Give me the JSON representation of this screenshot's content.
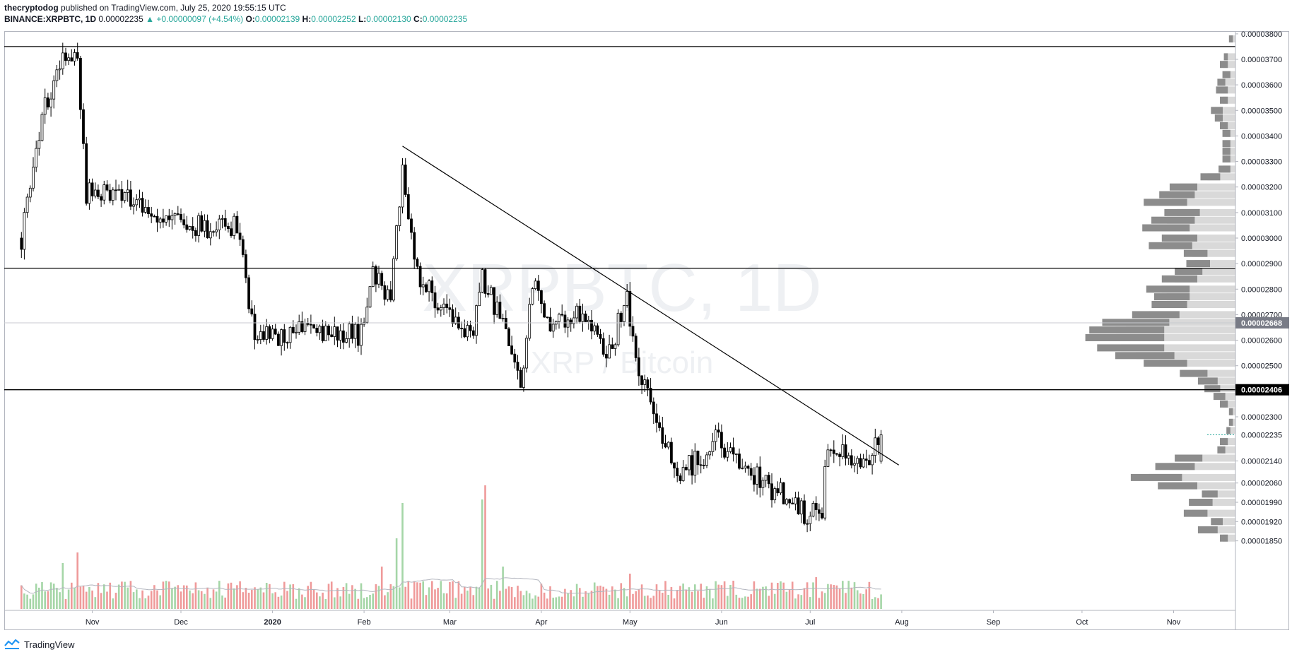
{
  "header": {
    "author": "thecryptodog",
    "published": "published on TradingView.com, July 25, 2020 19:55:15 UTC",
    "symbol": "BINANCE:XRPBTC, 1D",
    "price": "0.00002235",
    "change": "+0.00000097 (+4.54%)",
    "o_label": "O:",
    "o": "0.00002139",
    "h_label": "H:",
    "h": "0.00002252",
    "l_label": "L:",
    "l": "0.00002130",
    "c_label": "C:",
    "c": "0.00002235"
  },
  "watermark": {
    "symbol": "XRPBTC, 1D",
    "name": "XRP / Bitcoin"
  },
  "footer": {
    "brand": "TradingView"
  },
  "colors": {
    "up": "#26a69a",
    "down": "#000000",
    "vol_up": "#a5d6a7",
    "vol_down": "#ef9a9a",
    "vp_dark": "#8c8c8c",
    "vp_light": "#d9d9d9",
    "badge_grey": "#787b86",
    "badge_black": "#000000"
  },
  "chart_data": {
    "type": "candlestick",
    "title": "BINANCE:XRPBTC, 1D",
    "x_ticks": [
      "Nov",
      "Dec",
      "2020",
      "Feb",
      "Mar",
      "Apr",
      "May",
      "Jun",
      "Jul",
      "Aug",
      "Sep",
      "Oct",
      "Nov"
    ],
    "y_ticks": [
      "0.00003800",
      "0.00003700",
      "0.00003600",
      "0.00003500",
      "0.00003400",
      "0.00003300",
      "0.00003200",
      "0.00003100",
      "0.00003000",
      "0.00002900",
      "0.00002800",
      "0.00002700",
      "0.00002600",
      "0.00002500",
      "0.00002300",
      "0.00002140",
      "0.00002060",
      "0.00001990",
      "0.00001920",
      "0.00001850"
    ],
    "price_badges": [
      {
        "value": "0.00002668",
        "style": "grey"
      },
      {
        "value": "0.00002406",
        "style": "black"
      },
      {
        "value": "0.00002235",
        "style": "last"
      }
    ],
    "horizontal_levels": [
      3.75e-05,
      2.882e-05,
      2.406e-05
    ],
    "trendline": {
      "from": [
        "2020-02-14",
        3.36e-05
      ],
      "to": [
        "2020-07-31",
        2.125e-05
      ]
    },
    "price_path": [
      [
        "2019-10-08",
        3e-05
      ],
      [
        "2019-10-15",
        3.47e-05
      ],
      [
        "2019-10-22",
        3.72e-05
      ],
      [
        "2019-10-27",
        3.71e-05
      ],
      [
        "2019-10-30",
        3.18e-05
      ],
      [
        "2019-11-10",
        3.18e-05
      ],
      [
        "2019-11-20",
        3.11e-05
      ],
      [
        "2019-12-01",
        3.09e-05
      ],
      [
        "2019-12-10",
        3.02e-05
      ],
      [
        "2019-12-20",
        3.05e-05
      ],
      [
        "2019-12-26",
        2.62e-05
      ],
      [
        "2020-01-05",
        2.62e-05
      ],
      [
        "2020-01-12",
        2.67e-05
      ],
      [
        "2020-01-20",
        2.63e-05
      ],
      [
        "2020-01-31",
        2.62e-05
      ],
      [
        "2020-02-04",
        2.85e-05
      ],
      [
        "2020-02-10",
        2.77e-05
      ],
      [
        "2020-02-14",
        3.26e-05
      ],
      [
        "2020-02-18",
        2.89e-05
      ],
      [
        "2020-02-25",
        2.75e-05
      ],
      [
        "2020-03-05",
        2.65e-05
      ],
      [
        "2020-03-09",
        2.62e-05
      ],
      [
        "2020-03-12",
        2.85e-05
      ],
      [
        "2020-03-20",
        2.62e-05
      ],
      [
        "2020-03-25",
        2.41e-05
      ],
      [
        "2020-03-29",
        2.82e-05
      ],
      [
        "2020-04-05",
        2.65e-05
      ],
      [
        "2020-04-15",
        2.72e-05
      ],
      [
        "2020-04-24",
        2.55e-05
      ],
      [
        "2020-04-30",
        2.78e-05
      ],
      [
        "2020-05-03",
        2.52e-05
      ],
      [
        "2020-05-08",
        2.38e-05
      ],
      [
        "2020-05-12",
        2.19e-05
      ],
      [
        "2020-05-18",
        2.11e-05
      ],
      [
        "2020-05-25",
        2.15e-05
      ],
      [
        "2020-05-30",
        2.23e-05
      ],
      [
        "2020-06-05",
        2.13e-05
      ],
      [
        "2020-06-15",
        2.06e-05
      ],
      [
        "2020-06-25",
        2e-05
      ],
      [
        "2020-06-30",
        1.93e-05
      ],
      [
        "2020-07-05",
        1.96e-05
      ],
      [
        "2020-07-07",
        2.22e-05
      ],
      [
        "2020-07-13",
        2.18e-05
      ],
      [
        "2020-07-20",
        2.14e-05
      ],
      [
        "2020-07-25",
        2.235e-05
      ]
    ],
    "volume_profile": [
      [
        3.78e-05,
        1,
        2
      ],
      [
        3.71e-05,
        1,
        4
      ],
      [
        3.68e-05,
        2,
        5
      ],
      [
        3.64e-05,
        2,
        4
      ],
      [
        3.61e-05,
        2,
        6
      ],
      [
        3.58e-05,
        3,
        6
      ],
      [
        3.54e-05,
        2,
        5
      ],
      [
        3.5e-05,
        3,
        8
      ],
      [
        3.47e-05,
        2,
        7
      ],
      [
        3.44e-05,
        2,
        5
      ],
      [
        3.41e-05,
        2,
        4
      ],
      [
        3.37e-05,
        2,
        4
      ],
      [
        3.34e-05,
        2,
        4
      ],
      [
        3.31e-05,
        2,
        4
      ],
      [
        3.27e-05,
        3,
        5
      ],
      [
        3.24e-05,
        5,
        11
      ],
      [
        3.2e-05,
        7,
        22
      ],
      [
        3.17e-05,
        9,
        25
      ],
      [
        3.14e-05,
        11,
        30
      ],
      [
        3.1e-05,
        9,
        23
      ],
      [
        3.07e-05,
        11,
        27
      ],
      [
        3.04e-05,
        12,
        30
      ],
      [
        3e-05,
        9,
        24
      ],
      [
        2.97e-05,
        11,
        28
      ],
      [
        2.94e-05,
        6,
        17
      ],
      [
        2.9e-05,
        6,
        16
      ],
      [
        2.87e-05,
        7,
        20
      ],
      [
        2.84e-05,
        9,
        24
      ],
      [
        2.8e-05,
        11,
        29
      ],
      [
        2.77e-05,
        9,
        27
      ],
      [
        2.74e-05,
        9,
        28
      ],
      [
        2.7e-05,
        12,
        34
      ],
      [
        2.67e-05,
        17,
        43
      ],
      [
        2.64e-05,
        19,
        47
      ],
      [
        2.61e-05,
        20,
        48
      ],
      [
        2.57e-05,
        17,
        45
      ],
      [
        2.54e-05,
        15,
        39
      ],
      [
        2.51e-05,
        11,
        30
      ],
      [
        2.47e-05,
        7,
        18
      ],
      [
        2.44e-05,
        5,
        12
      ],
      [
        2.41e-05,
        4,
        10
      ],
      [
        2.38e-05,
        3,
        7
      ],
      [
        2.35e-05,
        2,
        5
      ],
      [
        2.32e-05,
        1,
        2
      ],
      [
        2.28e-05,
        1,
        2
      ],
      [
        2.25e-05,
        1,
        3
      ],
      [
        2.21e-05,
        2,
        5
      ],
      [
        2.18e-05,
        2,
        6
      ],
      [
        2.15e-05,
        7,
        20
      ],
      [
        2.12e-05,
        10,
        26
      ],
      [
        2.08e-05,
        13,
        34
      ],
      [
        2.05e-05,
        10,
        25
      ],
      [
        2.02e-05,
        4,
        11
      ],
      [
        1.99e-05,
        6,
        15
      ],
      [
        1.95e-05,
        6,
        17
      ],
      [
        1.92e-05,
        3,
        8
      ],
      [
        1.89e-05,
        5,
        12
      ],
      [
        1.86e-05,
        2,
        5
      ]
    ]
  }
}
